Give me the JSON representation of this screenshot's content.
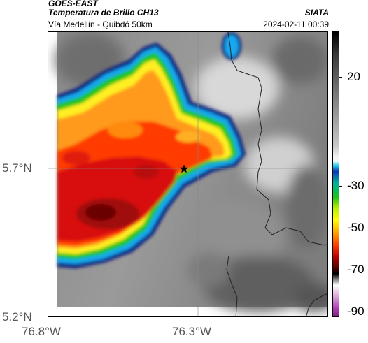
{
  "header": {
    "product": "GOES-EAST",
    "title": "Temperatura de Brillo CH13",
    "agency": "SIATA",
    "subtitle": "Vía Medellín - Quibdó 50km",
    "datetime": "2024-02-11 00:39"
  },
  "map": {
    "lat_ticks": [
      "5.7°N",
      "5.2°N"
    ],
    "lon_ticks": [
      "76.8°W",
      "76.3°W"
    ],
    "marker": "star-marker"
  },
  "colorbar": {
    "labels": [
      "20",
      "-30",
      "-50",
      "-70",
      "-90"
    ],
    "gradient": [
      [
        "#000000",
        0
      ],
      [
        "#3a3a3a",
        8
      ],
      [
        "#7a7a7a",
        22
      ],
      [
        "#c8c8c8",
        40
      ],
      [
        "#f2f2f2",
        44
      ],
      [
        "#e8f8ff",
        45.5
      ],
      [
        "#18c8e8",
        47
      ],
      [
        "#0a3ab8",
        49
      ],
      [
        "#00b0a0",
        53
      ],
      [
        "#1ac41a",
        58
      ],
      [
        "#b8f000",
        62
      ],
      [
        "#ffff00",
        66
      ],
      [
        "#ff9a00",
        71
      ],
      [
        "#ff3a00",
        75
      ],
      [
        "#c00000",
        79
      ],
      [
        "#500000",
        83
      ],
      [
        "#000000",
        85
      ],
      [
        "#ffffff",
        89
      ],
      [
        "#d8a8d8",
        93
      ],
      [
        "#b040b0",
        97
      ],
      [
        "#802080",
        100
      ]
    ]
  },
  "colors": {
    "cloud_core": "#c81414",
    "cloud_orange": "#ff7a00",
    "cloud_yellow": "#ffee20",
    "cloud_green": "#18c818",
    "cloud_blue": "#1890e8",
    "cloud_edge": "#0a1a80"
  }
}
